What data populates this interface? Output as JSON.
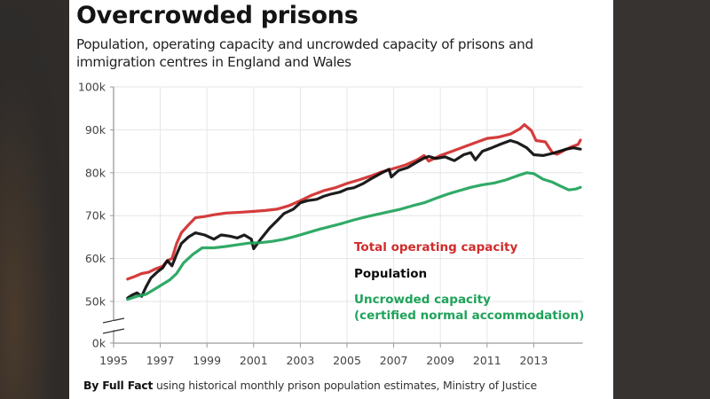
{
  "colors": {
    "operating": "#d12b2b",
    "population": "#0a0a0a",
    "uncrowded": "#1fa35a",
    "grid": "#e6e6e6",
    "axis": "#9a9a9a"
  },
  "source": {
    "bold": "By Full Fact",
    "rest": " using historical monthly prison population estimates, Ministry of Justice"
  },
  "chart_data": {
    "type": "line",
    "title": "Overcrowded prisons",
    "subtitle": "Population, operating capacity and uncrowded capacity of prisons and immigration centres in England and Wales",
    "xlabel": "",
    "ylabel": "",
    "xlim": [
      1995,
      2015.1
    ],
    "ylim": [
      0,
      100000
    ],
    "axis_break": [
      0,
      50000
    ],
    "grid": true,
    "x_ticks": [
      1995,
      1997,
      1999,
      2001,
      2003,
      2005,
      2007,
      2009,
      2011,
      2013
    ],
    "x_tick_labels": [
      "1995",
      "1997",
      "1999",
      "2001",
      "2003",
      "2005",
      "2007",
      "2009",
      "2011",
      "2013"
    ],
    "y_ticks": [
      0,
      50000,
      60000,
      70000,
      80000,
      90000,
      100000
    ],
    "y_tick_labels": [
      "0k",
      "50k",
      "60k",
      "70k",
      "80k",
      "90k",
      "100k"
    ],
    "legend_placement": "inline, lower-right",
    "series": [
      {
        "name": "Total operating capacity",
        "key": "operating",
        "x": [
          1995.6,
          1995.9,
          1996.2,
          1996.5,
          1996.8,
          1997.1,
          1997.3,
          1997.5,
          1997.7,
          1997.9,
          1998.2,
          1998.5,
          1998.9,
          1999.3,
          1999.8,
          2000.5,
          2001.0,
          2001.5,
          2002.0,
          2002.5,
          2003.0,
          2003.5,
          2004.0,
          2004.5,
          2005.0,
          2005.5,
          2006.0,
          2006.5,
          2007.0,
          2007.5,
          2008.0,
          2008.3,
          2008.5,
          2009.0,
          2009.5,
          2010.0,
          2010.5,
          2011.0,
          2011.5,
          2012.0,
          2012.4,
          2012.6,
          2012.9,
          2013.1,
          2013.5,
          2013.8,
          2014.0,
          2014.3,
          2014.6,
          2014.9,
          2015.0
        ],
        "values": [
          55200,
          55800,
          56500,
          56800,
          57600,
          58200,
          59500,
          60000,
          63500,
          66000,
          67800,
          69500,
          69800,
          70200,
          70600,
          70800,
          71000,
          71200,
          71500,
          72300,
          73500,
          74800,
          75800,
          76500,
          77500,
          78300,
          79200,
          80200,
          81000,
          81800,
          83000,
          84000,
          82700,
          84000,
          85000,
          86000,
          87000,
          88000,
          88300,
          89000,
          90200,
          91200,
          89800,
          87500,
          87200,
          84700,
          84300,
          85200,
          86000,
          86600,
          87600
        ]
      },
      {
        "name": "Population",
        "key": "population",
        "x": [
          1995.6,
          1995.8,
          1996.0,
          1996.2,
          1996.4,
          1996.6,
          1996.9,
          1997.1,
          1997.3,
          1997.5,
          1997.7,
          1997.9,
          1998.2,
          1998.5,
          1998.9,
          1999.3,
          1999.6,
          2000.0,
          2000.3,
          2000.6,
          2000.9,
          2001.0,
          2001.3,
          2001.7,
          2002.0,
          2002.3,
          2002.7,
          2003.0,
          2003.3,
          2003.7,
          2004.0,
          2004.3,
          2004.7,
          2005.0,
          2005.3,
          2005.7,
          2006.0,
          2006.5,
          2006.8,
          2006.9,
          2007.2,
          2007.6,
          2008.0,
          2008.3,
          2008.5,
          2008.8,
          2009.2,
          2009.6,
          2010.0,
          2010.3,
          2010.5,
          2010.8,
          2011.2,
          2011.6,
          2012.0,
          2012.3,
          2012.7,
          2013.0,
          2013.4,
          2013.8,
          2014.1,
          2014.4,
          2014.7,
          2015.0
        ],
        "values": [
          50800,
          51500,
          52000,
          51200,
          53500,
          55500,
          57000,
          57800,
          59500,
          58300,
          61000,
          63500,
          65000,
          66000,
          65500,
          64500,
          65500,
          65200,
          64800,
          65500,
          64500,
          62300,
          64500,
          67200,
          68800,
          70500,
          71500,
          73000,
          73500,
          73800,
          74500,
          75000,
          75500,
          76200,
          76500,
          77500,
          78500,
          80000,
          80800,
          79000,
          80500,
          81200,
          82500,
          83400,
          83800,
          83300,
          83700,
          82800,
          84200,
          84700,
          83000,
          85000,
          85800,
          86700,
          87500,
          87000,
          85800,
          84200,
          84000,
          84500,
          85000,
          85500,
          85800,
          85500
        ]
      },
      {
        "name": "Uncrowded capacity (certified normal accommodation)",
        "key": "uncrowded",
        "x": [
          1995.6,
          1996.0,
          1996.4,
          1996.8,
          1997.1,
          1997.4,
          1997.7,
          1998.0,
          1998.4,
          1998.8,
          1999.3,
          1999.8,
          2000.3,
          2000.8,
          2001.3,
          2001.8,
          2002.3,
          2002.8,
          2003.3,
          2003.8,
          2004.3,
          2004.8,
          2005.3,
          2005.8,
          2006.3,
          2006.8,
          2007.3,
          2007.8,
          2008.3,
          2008.8,
          2009.3,
          2009.8,
          2010.3,
          2010.8,
          2011.3,
          2011.8,
          2012.3,
          2012.7,
          2013.0,
          2013.4,
          2013.8,
          2014.1,
          2014.5,
          2014.8,
          2015.0
        ],
        "values": [
          50500,
          51200,
          51700,
          53000,
          54000,
          55000,
          56500,
          59000,
          61000,
          62500,
          62500,
          62800,
          63200,
          63600,
          63700,
          64000,
          64500,
          65200,
          66000,
          66800,
          67500,
          68200,
          69000,
          69700,
          70300,
          70900,
          71500,
          72300,
          73000,
          74000,
          75000,
          75800,
          76600,
          77200,
          77600,
          78300,
          79300,
          80000,
          79800,
          78500,
          77800,
          77000,
          76000,
          76200,
          76600
        ]
      }
    ],
    "legend": [
      {
        "label": "Total operating capacity",
        "key": "operating"
      },
      {
        "label": "Population",
        "key": "population"
      },
      {
        "label": "Uncrowded capacity",
        "label2": "(certified normal accommodation)",
        "key": "uncrowded"
      }
    ]
  }
}
